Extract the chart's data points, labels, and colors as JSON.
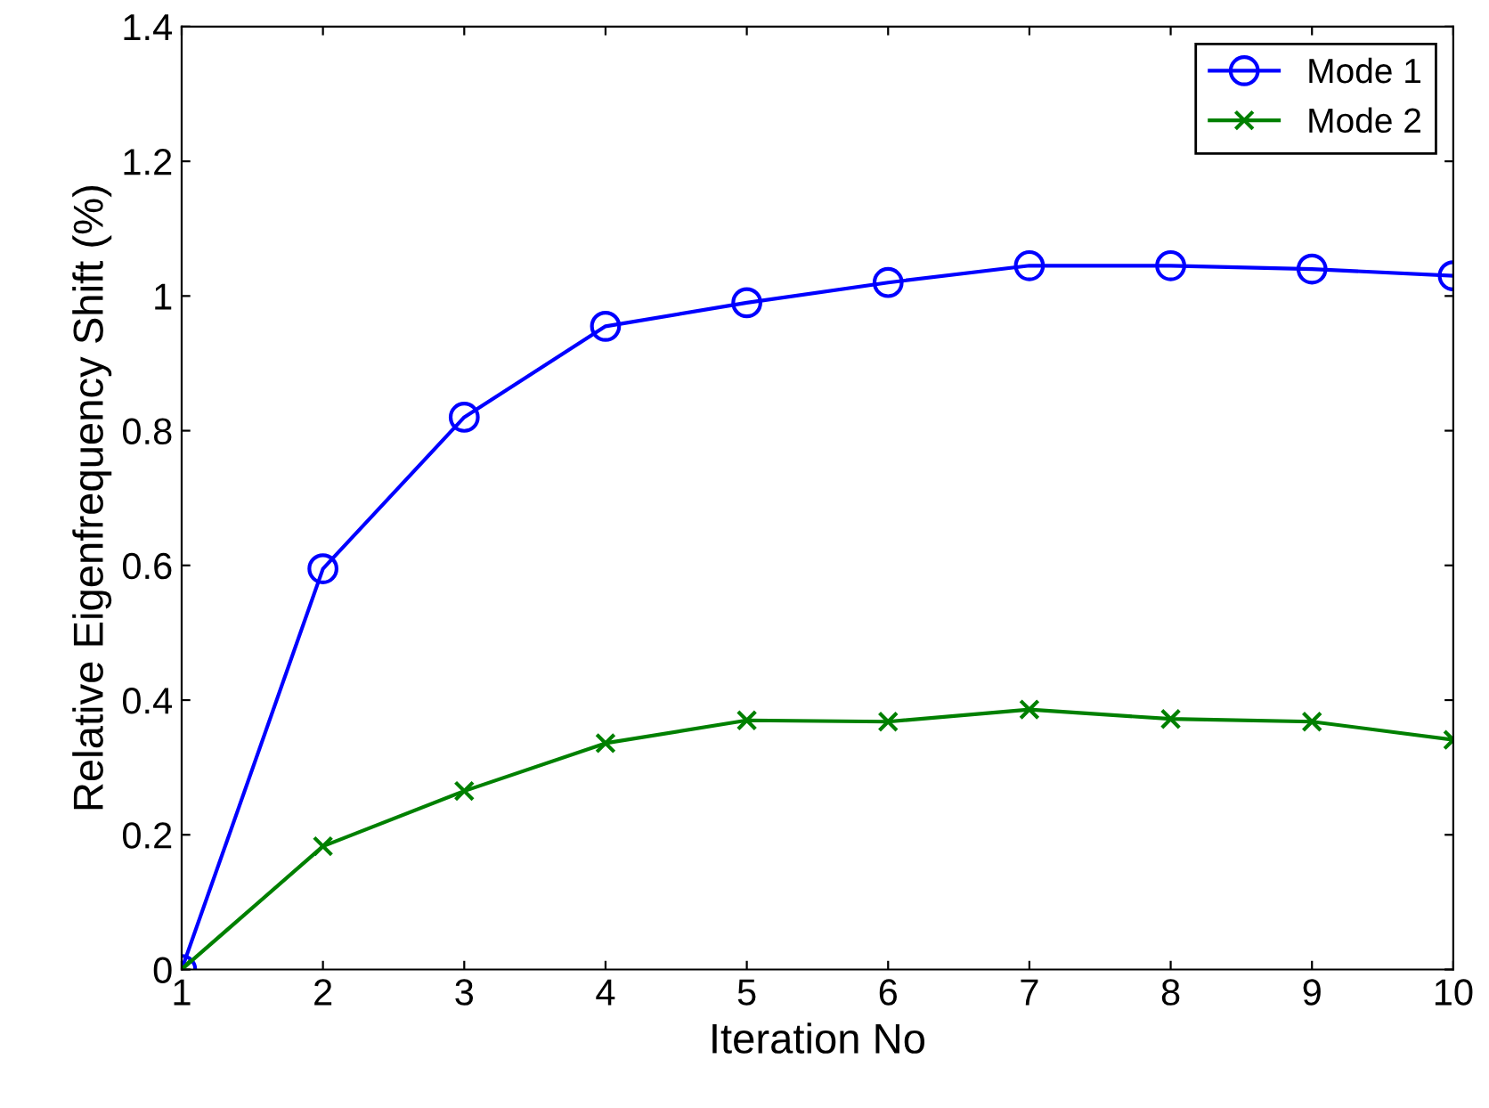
{
  "chart_data": {
    "type": "line",
    "xlabel": "Iteration No",
    "ylabel": "Relative Eigenfrequency Shift (%)",
    "x": [
      1,
      2,
      3,
      4,
      5,
      6,
      7,
      8,
      9,
      10
    ],
    "series": [
      {
        "name": "Mode 1",
        "color": "#0000ff",
        "marker": "circle",
        "values": [
          0,
          0.595,
          0.82,
          0.955,
          0.99,
          1.02,
          1.045,
          1.045,
          1.04,
          1.03
        ]
      },
      {
        "name": "Mode 2",
        "color": "#008000",
        "marker": "cross",
        "values": [
          0,
          0.183,
          0.265,
          0.336,
          0.37,
          0.368,
          0.386,
          0.372,
          0.368,
          0.341
        ]
      }
    ],
    "xlim": [
      1,
      10
    ],
    "xticks": [
      1,
      2,
      3,
      4,
      5,
      6,
      7,
      8,
      9,
      10
    ],
    "ylim": [
      0,
      1.4
    ],
    "yticks": [
      0,
      0.2,
      0.4,
      0.6,
      0.8,
      1,
      1.2,
      1.4
    ],
    "grid": false,
    "legend": "top right",
    "line_style": "solid"
  }
}
